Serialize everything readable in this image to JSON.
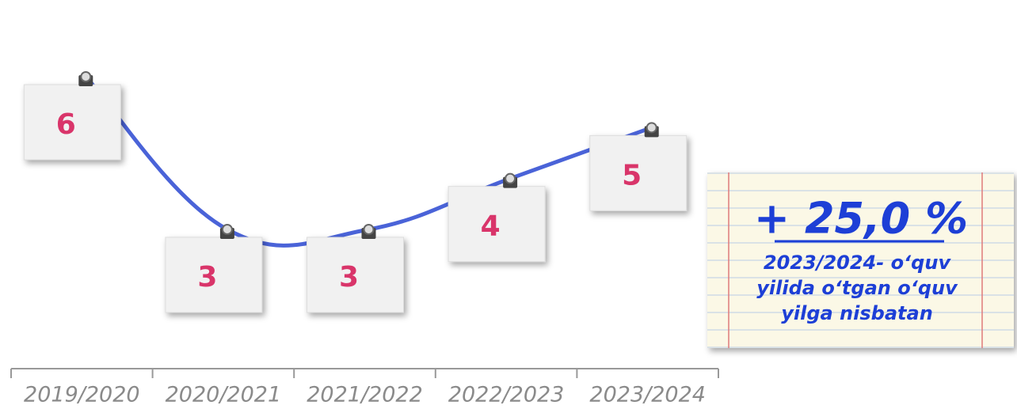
{
  "chart_data": {
    "type": "line",
    "categories": [
      "2019/2020",
      "2020/2021",
      "2021/2022",
      "2022/2023",
      "2023/2024"
    ],
    "values": [
      6,
      3,
      3,
      4,
      5
    ],
    "color": "#4a63d8",
    "label_color": "#d9356a",
    "annotation": {
      "change": "+ 25,0 %",
      "lines": [
        "2023/2024- o‘quv",
        "yilida o‘tgan o‘quv",
        "yilga nisbatan"
      ],
      "color": "#1d3fd6"
    }
  }
}
